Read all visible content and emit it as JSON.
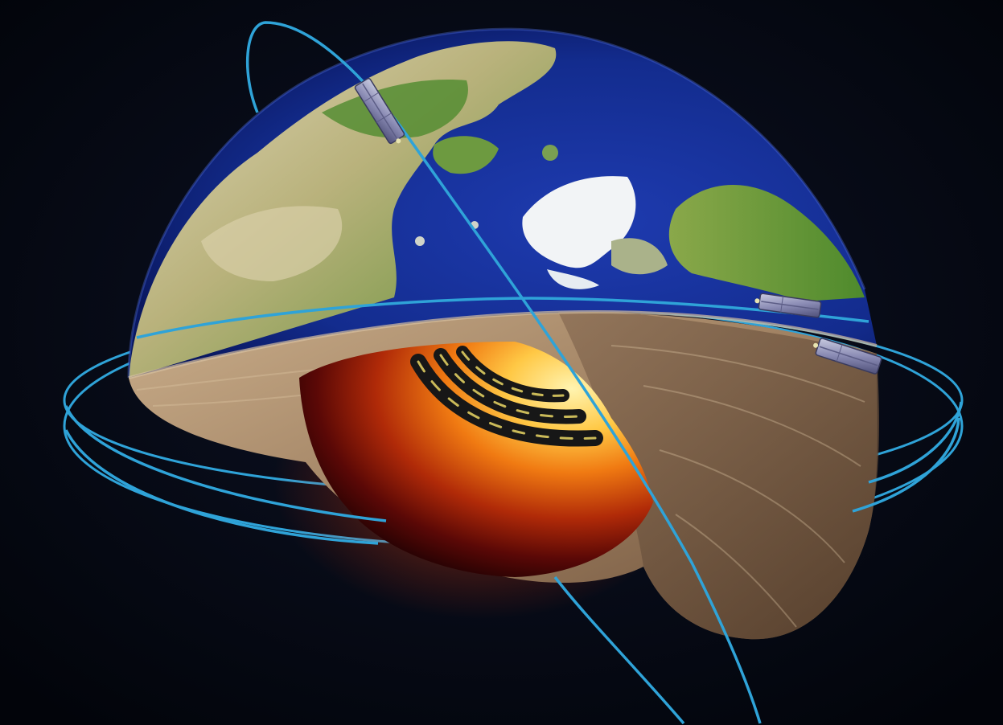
{
  "scene": {
    "subject": "earth-core-cutaway",
    "colors": {
      "space": "#05070f",
      "ocean": "#142a8c",
      "land_green": "#6f9a3c",
      "land_tan": "#cbbf99",
      "ice": "#f2f4f6",
      "mantle": "#a88866",
      "mantle_dark": "#6f553f",
      "core_hot": "#fff1a8",
      "core_mid": "#f08a1a",
      "core_dark": "#3a0505",
      "orbit": "#2fa3d8",
      "jet_band": "#171717"
    },
    "icons": [
      "orbit-ring-icon",
      "satellite-icon",
      "jet-stream-icon"
    ],
    "satellite_count": 3
  }
}
